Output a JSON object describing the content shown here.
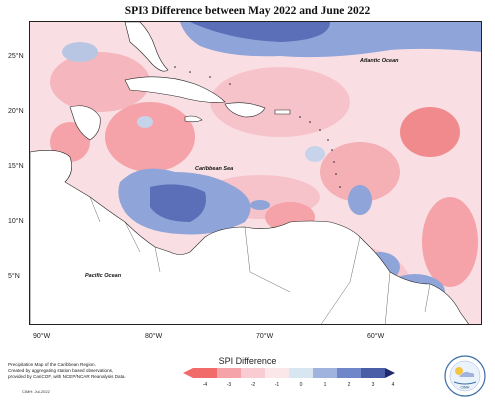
{
  "title": "SPI3 Difference between May 2022 and June 2022",
  "ocean_labels": {
    "atlantic": "Atlantic Ocean",
    "caribbean": "Caribbean Sea",
    "pacific": "Pacific Ocean"
  },
  "latitude_ticks": [
    "25°N",
    "20°N",
    "15°N",
    "10°N",
    "5°N"
  ],
  "longitude_ticks": [
    "90°W",
    "80°W",
    "70°W",
    "60°W"
  ],
  "legend": {
    "title": "SPI Difference",
    "ticks": [
      "-4",
      "-3",
      "-2",
      "-1",
      "0",
      "1",
      "2",
      "3",
      "4"
    ],
    "colors": [
      "#f26b6b",
      "#f5a3a8",
      "#f8ccd2",
      "#fbe6ea",
      "#d7e6f0",
      "#9fb3de",
      "#6f86c8",
      "#4a5ea8"
    ]
  },
  "credit": {
    "lines": [
      "Precipitation Map of the Caribbean Region.",
      "Created by aggregating station based observations,",
      "provided by CariCOF, with NCEP/NCAR Reanalysis Data."
    ],
    "date": "CIMH: Jul-2022"
  },
  "logo_text": "CIMH",
  "colors": {
    "background_pink": "#f9dfe4",
    "dry": "#f5a3a8",
    "very_dry": "#f08080",
    "wet": "#8fa4d8",
    "very_wet": "#5a6fb8",
    "neutral": "#e8eef6"
  }
}
